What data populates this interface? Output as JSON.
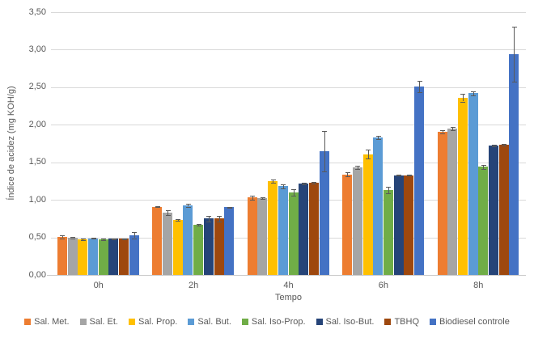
{
  "chart_data": {
    "type": "bar",
    "title": "",
    "xlabel": "Tempo",
    "ylabel": "Índice de acidez (mg KOH/g)",
    "categories": [
      "0h",
      "2h",
      "4h",
      "6h",
      "8h"
    ],
    "y_ticks": [
      "0,00",
      "0,50",
      "1,00",
      "1,50",
      "2,00",
      "2,50",
      "3,00",
      "3,50"
    ],
    "ylim": [
      0,
      3.5
    ],
    "grid": true,
    "legend_position": "bottom",
    "error_bars": true,
    "series": [
      {
        "name": "Sal. Met.",
        "color": "#ED7D31",
        "values": [
          0.51,
          0.91,
          1.03,
          1.34,
          1.91
        ],
        "errors": [
          0.02,
          0.01,
          0.03,
          0.03,
          0.02
        ]
      },
      {
        "name": "Sal. Et.",
        "color": "#A5A5A5",
        "values": [
          0.5,
          0.83,
          1.02,
          1.43,
          1.95
        ],
        "errors": [
          0.01,
          0.03,
          0.01,
          0.02,
          0.02
        ]
      },
      {
        "name": "Sal. Prop.",
        "color": "#FFC000",
        "values": [
          0.47,
          0.73,
          1.25,
          1.61,
          2.36
        ],
        "errors": [
          0.01,
          0.01,
          0.02,
          0.06,
          0.05
        ]
      },
      {
        "name": "Sal. But.",
        "color": "#5B9BD5",
        "values": [
          0.49,
          0.93,
          1.18,
          1.83,
          2.42
        ],
        "errors": [
          0.01,
          0.02,
          0.03,
          0.02,
          0.03
        ]
      },
      {
        "name": "Sal. Iso-Prop.",
        "color": "#70AD47",
        "values": [
          0.47,
          0.67,
          1.1,
          1.13,
          1.44
        ],
        "errors": [
          0.01,
          0.01,
          0.04,
          0.04,
          0.03
        ]
      },
      {
        "name": "Sal. Iso-But.",
        "color": "#264478",
        "values": [
          0.48,
          0.75,
          1.22,
          1.33,
          1.72
        ],
        "errors": [
          0.01,
          0.04,
          0.01,
          0.01,
          0.01
        ]
      },
      {
        "name": "TBHQ",
        "color": "#9E480E",
        "values": [
          0.48,
          0.75,
          1.23,
          1.33,
          1.73
        ],
        "errors": [
          0.01,
          0.04,
          0.01,
          0.01,
          0.01
        ]
      },
      {
        "name": "Biodiesel controle",
        "color": "#4472C4",
        "values": [
          0.53,
          0.9,
          1.65,
          2.51,
          2.94
        ],
        "errors": [
          0.04,
          0.01,
          0.27,
          0.08,
          0.37
        ]
      }
    ],
    "colors": {
      "gridline": "#d9d9d9",
      "axis_text": "#595959",
      "error_bar": "#595959",
      "background": "#ffffff"
    }
  }
}
